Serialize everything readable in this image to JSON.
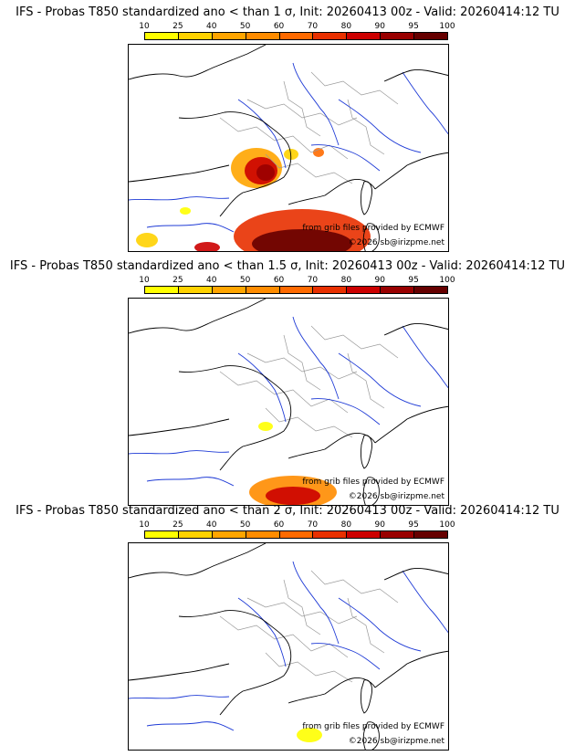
{
  "colorbar": {
    "ticks": [
      "10",
      "25",
      "40",
      "50",
      "60",
      "70",
      "80",
      "90",
      "95",
      "100"
    ],
    "colors": [
      "#ffff00",
      "#ffd200",
      "#ffa500",
      "#ff8c00",
      "#ff6a00",
      "#e83000",
      "#cc0000",
      "#990000",
      "#660000"
    ]
  },
  "panels": [
    {
      "title": "IFS - Probas T850  standardized ano < than 1 σ, Init: 20260413 00z - Valid: 20260414:12 TU",
      "credit_source": "from grib files provided by ECMWF",
      "credit_copyright": "©2026 sb@irizpme.net",
      "intensity": "high"
    },
    {
      "title": "IFS - Probas T850  standardized ano < than 1.5 σ, Init: 20260413 00z - Valid: 20260414:12 TU",
      "credit_source": "from grib files provided by ECMWF",
      "credit_copyright": "©2026 sb@irizpme.net",
      "intensity": "medium"
    },
    {
      "title": "IFS - Probas T850  standardized ano < than 2 σ, Init: 20260413 00z - Valid: 20260414:12 TU",
      "credit_source": "from grib files provided by ECMWF",
      "credit_copyright": "©2026 sb@irizpme.net",
      "intensity": "low"
    }
  ]
}
